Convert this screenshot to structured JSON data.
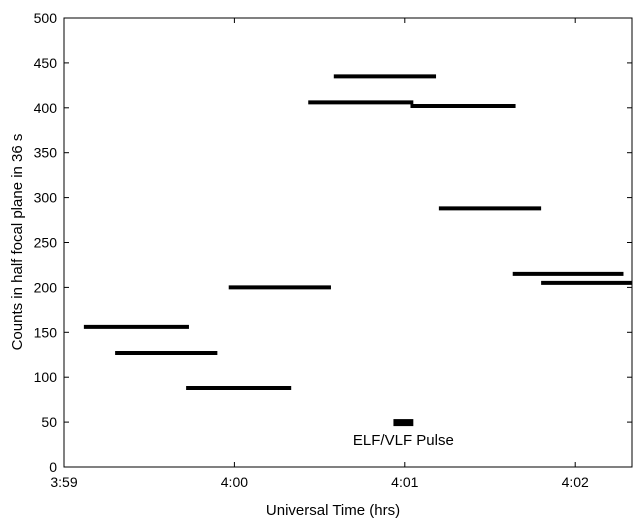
{
  "chart_data": {
    "type": "line",
    "title": "",
    "xlabel": "Universal Time (hrs)",
    "ylabel": "Counts in half focal plane in 36 s",
    "xlim": [
      "3:59:00",
      "4:02:20"
    ],
    "ylim": [
      0,
      500
    ],
    "x_ticks": [
      "3:59",
      "4:00",
      "4:01",
      "4:02"
    ],
    "y_ticks": [
      "0",
      "50",
      "100",
      "150",
      "200",
      "250",
      "300",
      "350",
      "400",
      "450",
      "500"
    ],
    "grid": false,
    "legend": "none",
    "series": [
      {
        "segments": [
          {
            "x_start": "3:59:07",
            "x_end": "3:59:44",
            "y": 156
          },
          {
            "x_start": "3:59:18",
            "x_end": "3:59:54",
            "y": 127
          },
          {
            "x_start": "3:59:43",
            "x_end": "4:00:20",
            "y": 88
          },
          {
            "x_start": "3:59:58",
            "x_end": "4:00:34",
            "y": 200
          },
          {
            "x_start": "4:00:26",
            "x_end": "4:01:03",
            "y": 406
          },
          {
            "x_start": "4:00:35",
            "x_end": "4:01:11",
            "y": 435
          },
          {
            "x_start": "4:01:02",
            "x_end": "4:01:39",
            "y": 402
          },
          {
            "x_start": "4:01:12",
            "x_end": "4:01:48",
            "y": 288
          },
          {
            "x_start": "4:01:38",
            "x_end": "4:02:17",
            "y": 215
          },
          {
            "x_start": "4:01:48",
            "x_end": "4:02:20",
            "y": 205
          }
        ]
      }
    ],
    "annotations": [
      {
        "text": "ELF/VLF Pulse",
        "x_start": "4:00:56",
        "x_end": "4:01:03",
        "y": 50
      }
    ]
  }
}
